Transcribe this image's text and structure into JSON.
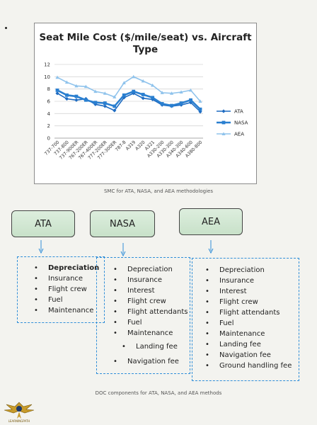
{
  "chart_data": {
    "type": "line",
    "title": "Seat Mile Cost ($/mile/seat) vs. Aircraft Type",
    "xlabel": "",
    "ylabel": "",
    "ylim": [
      0,
      12
    ],
    "yticks": [
      0,
      2,
      4,
      6,
      8,
      10,
      12
    ],
    "grid": true,
    "legend_position": "right",
    "categories": [
      "737-700",
      "737-800",
      "737-900ER",
      "767-200ER",
      "767-400ER",
      "777-200ER",
      "777-300ER",
      "787-8",
      "A319",
      "A320",
      "A321",
      "A330-200",
      "A330-300",
      "A340-300",
      "A340-600",
      "A380-800"
    ],
    "series": [
      {
        "name": "ATA",
        "color": "#1f6cc2",
        "values": [
          7.3,
          6.4,
          6.2,
          6.4,
          5.5,
          5.2,
          4.5,
          6.6,
          7.3,
          6.5,
          6.3,
          5.4,
          5.2,
          5.4,
          5.8,
          4.3
        ]
      },
      {
        "name": "NASA",
        "color": "#2a7fd0",
        "values": [
          7.8,
          7.0,
          6.8,
          6.2,
          5.8,
          5.7,
          5.2,
          7.0,
          7.6,
          7.1,
          6.6,
          5.6,
          5.3,
          5.7,
          6.2,
          4.7
        ]
      },
      {
        "name": "AEA",
        "color": "#8fc3ec",
        "values": [
          9.9,
          9.1,
          8.5,
          8.4,
          7.6,
          7.3,
          6.7,
          9.0,
          10.0,
          9.3,
          8.6,
          7.4,
          7.3,
          7.5,
          7.8,
          6.0
        ]
      }
    ]
  },
  "captions": {
    "chart": "SMC for ATA, NASA, and AEA methodologies",
    "doc": "DOC components for ATA, NASA, and AEA methods"
  },
  "boxes": {
    "ata": "ATA",
    "nasa": "NASA",
    "aea": "AEA"
  },
  "bullet": "•",
  "lists": {
    "ata": [
      "Depreciation",
      "Insurance",
      "Flight crew",
      "Fuel",
      "Maintenance"
    ],
    "nasa": [
      "Depreciation",
      "Insurance",
      "Interest",
      "Flight crew",
      "Flight attendants",
      "Fuel",
      "Maintenance",
      "Landing fee",
      "Navigation fee"
    ],
    "aea": [
      "Depreciation",
      "Insurance",
      "Interest",
      "Flight crew",
      "Flight attendants",
      "Fuel",
      "Maintenance",
      "Landing fee",
      "Navigation fee",
      "Ground handling fee"
    ]
  },
  "logo": {
    "icon": "winged-emblem-icon",
    "text": "LEARNINGPATH"
  }
}
